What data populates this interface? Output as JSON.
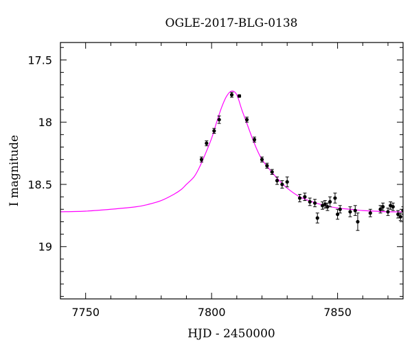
{
  "chart_data": {
    "type": "scatter",
    "title": "OGLE-2017-BLG-0138",
    "xlabel": "HJD - 2450000",
    "ylabel": "I magnitude",
    "xlim": [
      7740,
      7876
    ],
    "ylim": [
      19.42,
      17.36
    ],
    "y_inverted": true,
    "xticks": [
      7750,
      7800,
      7850
    ],
    "yticks": [
      17.5,
      18,
      18.5,
      19
    ],
    "ytick_labels": [
      "17.5",
      "18",
      "18.5",
      "19"
    ],
    "grid": false,
    "colors": {
      "data": "#000000",
      "model": "#ff00ff"
    },
    "series": [
      {
        "type": "scatter-errorbars",
        "x": [
          7796,
          7798,
          7801,
          7803,
          7808,
          7811,
          7814,
          7817,
          7820,
          7822,
          7824,
          7826,
          7828,
          7830,
          7835,
          7837,
          7839,
          7841,
          7842,
          7844,
          7845,
          7846,
          7847,
          7849,
          7850,
          7851,
          7855,
          7857,
          7858,
          7863,
          7867,
          7868,
          7870,
          7871,
          7872,
          7874,
          7875,
          7876
        ],
        "y": [
          18.3,
          18.17,
          18.07,
          17.98,
          17.78,
          17.79,
          17.98,
          18.14,
          18.3,
          18.35,
          18.4,
          18.47,
          18.5,
          18.48,
          18.61,
          18.6,
          18.64,
          18.65,
          18.77,
          18.67,
          18.66,
          18.68,
          18.64,
          18.61,
          18.74,
          18.7,
          18.72,
          18.71,
          18.8,
          18.73,
          18.7,
          18.68,
          18.72,
          18.67,
          18.68,
          18.74,
          18.76,
          18.71
        ],
        "yerr": [
          0.02,
          0.02,
          0.02,
          0.03,
          0.02,
          0.01,
          0.02,
          0.02,
          0.02,
          0.02,
          0.02,
          0.03,
          0.03,
          0.04,
          0.03,
          0.03,
          0.03,
          0.03,
          0.04,
          0.03,
          0.03,
          0.03,
          0.04,
          0.04,
          0.04,
          0.03,
          0.04,
          0.04,
          0.07,
          0.03,
          0.03,
          0.03,
          0.03,
          0.03,
          0.03,
          0.03,
          0.03,
          0.03
        ]
      },
      {
        "type": "line",
        "x": [
          7740,
          7750,
          7760,
          7770,
          7775,
          7780,
          7785,
          7788,
          7790,
          7793,
          7795,
          7797,
          7800,
          7802,
          7804,
          7806,
          7808,
          7810,
          7812,
          7814,
          7816,
          7818,
          7820,
          7823,
          7826,
          7830,
          7835,
          7840,
          7845,
          7850,
          7855,
          7860,
          7865,
          7870,
          7876
        ],
        "y": [
          18.72,
          18.715,
          18.7,
          18.68,
          18.66,
          18.63,
          18.58,
          18.54,
          18.5,
          18.44,
          18.37,
          18.28,
          18.13,
          18.0,
          17.88,
          17.79,
          17.75,
          17.78,
          17.9,
          18.01,
          18.12,
          18.22,
          18.3,
          18.38,
          18.45,
          18.53,
          18.6,
          18.64,
          18.67,
          18.69,
          18.7,
          18.71,
          18.715,
          18.72,
          18.72
        ]
      }
    ]
  }
}
